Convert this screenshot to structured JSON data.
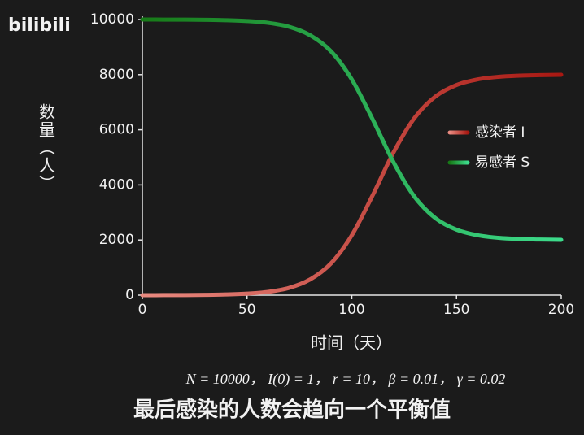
{
  "logo": "bilibili",
  "caption": "最后感染的人数会趋向一个平衡值",
  "chart_data": {
    "type": "line",
    "xlabel": "时间（天）",
    "ylabel": "数量（人）",
    "annotation": "N = 10000， I(0) = 1， r = 10， β = 0.01， γ = 0.02",
    "x": [
      0,
      10,
      20,
      30,
      40,
      50,
      60,
      70,
      80,
      90,
      100,
      110,
      120,
      130,
      140,
      150,
      160,
      170,
      180,
      190,
      200
    ],
    "series": [
      {
        "name": "感染者 I",
        "colors": [
          "#e98a80",
          "#a81812"
        ],
        "values": [
          1,
          2,
          5,
          11,
          24,
          54,
          120,
          262,
          565,
          1147,
          2172,
          3627,
          5189,
          6434,
          7211,
          7625,
          7827,
          7921,
          7964,
          7984,
          7993
        ]
      },
      {
        "name": "易感者 S",
        "colors": [
          "#177a17",
          "#3ddc8c"
        ],
        "values": [
          9999,
          9998,
          9995,
          9989,
          9976,
          9946,
          9880,
          9738,
          9435,
          8853,
          7828,
          6373,
          4811,
          3566,
          2789,
          2375,
          2173,
          2079,
          2036,
          2016,
          2007
        ]
      }
    ],
    "xlim": [
      0,
      200
    ],
    "xticks": [
      0,
      50,
      100,
      150,
      200
    ],
    "ylim": [
      0,
      10000
    ],
    "yticks": [
      0,
      2000,
      4000,
      6000,
      8000,
      10000
    ],
    "legend": "center right",
    "grid": false
  }
}
